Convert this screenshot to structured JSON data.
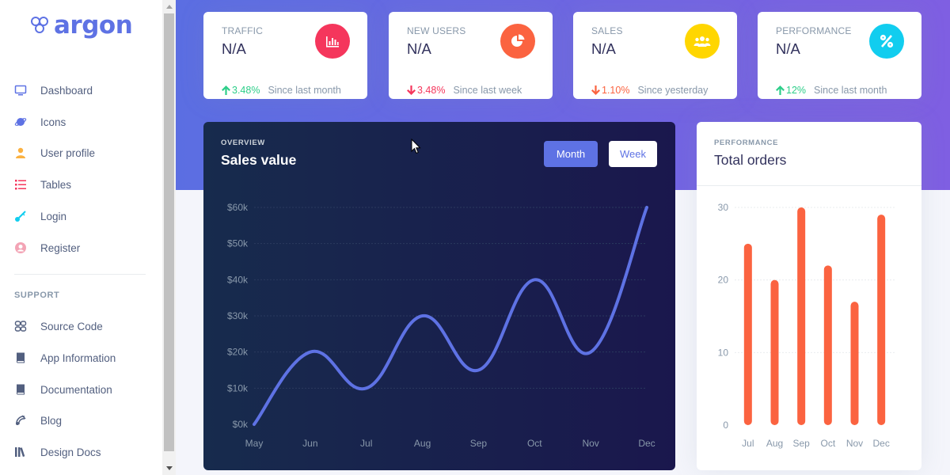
{
  "brand": {
    "name": "argon",
    "color": "#5e72e4"
  },
  "sidebar": {
    "items": [
      {
        "label": "Dashboard",
        "icon": "tv-icon",
        "color": "#5e72e4"
      },
      {
        "label": "Icons",
        "icon": "planet-icon",
        "color": "#5e72e4"
      },
      {
        "label": "User profile",
        "icon": "user-icon",
        "color": "#fbb140"
      },
      {
        "label": "Tables",
        "icon": "list-icon",
        "color": "#f5365c"
      },
      {
        "label": "Login",
        "icon": "key-icon",
        "color": "#11cdef"
      },
      {
        "label": "Register",
        "icon": "circle-user-icon",
        "color": "#f3a4b5"
      }
    ],
    "support_heading": "SUPPORT",
    "support_items": [
      {
        "label": "Source Code",
        "icon": "code-icon"
      },
      {
        "label": "App Information",
        "icon": "book-icon"
      },
      {
        "label": "Documentation",
        "icon": "book-icon"
      },
      {
        "label": "Blog",
        "icon": "satellite-icon"
      },
      {
        "label": "Design Docs",
        "icon": "library-icon"
      }
    ]
  },
  "stats": [
    {
      "title": "TRAFFIC",
      "value": "N/A",
      "change": "3.48%",
      "direction": "up",
      "since": "Since last month",
      "icon": "chart-bar-icon",
      "icon_bg": "#f5365c",
      "change_color": "#2dce89"
    },
    {
      "title": "NEW USERS",
      "value": "N/A",
      "change": "3.48%",
      "direction": "down",
      "since": "Since last week",
      "icon": "chart-pie-icon",
      "icon_bg": "#fb6340",
      "change_color": "#f5365c"
    },
    {
      "title": "SALES",
      "value": "N/A",
      "change": "1.10%",
      "direction": "down",
      "since": "Since yesterday",
      "icon": "users-icon",
      "icon_bg": "#ffd600",
      "change_color": "#fb6340"
    },
    {
      "title": "PERFORMANCE",
      "value": "N/A",
      "change": "12%",
      "direction": "up",
      "since": "Since last month",
      "icon": "percent-icon",
      "icon_bg": "#11cdef",
      "change_color": "#2dce89"
    }
  ],
  "sales_card": {
    "subtitle": "OVERVIEW",
    "title": "Sales value",
    "buttons": {
      "month": "Month",
      "week": "Week"
    }
  },
  "orders_card": {
    "subtitle": "PERFORMANCE",
    "title": "Total orders"
  },
  "chart_data": [
    {
      "type": "line",
      "x": [
        "May",
        "Jun",
        "Jul",
        "Aug",
        "Sep",
        "Oct",
        "Nov",
        "Dec"
      ],
      "series": [
        {
          "values": [
            0,
            20,
            10,
            30,
            15,
            40,
            20,
            60
          ],
          "color": "#5e72e4"
        }
      ],
      "ylim": [
        0,
        60
      ],
      "yticks": [
        "$0k",
        "$10k",
        "$20k",
        "$30k",
        "$40k",
        "$50k",
        "$60k"
      ],
      "grid": true
    },
    {
      "type": "bar",
      "categories": [
        "Jul",
        "Aug",
        "Sep",
        "Oct",
        "Nov",
        "Dec"
      ],
      "values": [
        25,
        20,
        30,
        22,
        17,
        29
      ],
      "color": "#fb6340",
      "ylim": [
        0,
        30
      ],
      "yticks": [
        "0",
        "10",
        "20",
        "30"
      ],
      "grid": true
    }
  ]
}
